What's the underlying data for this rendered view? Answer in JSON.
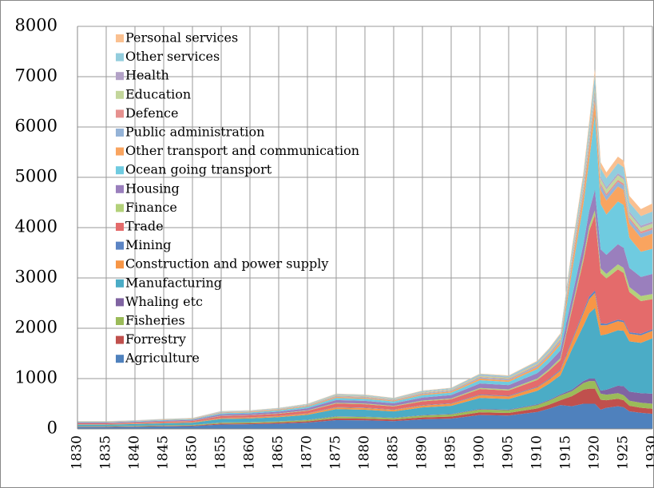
{
  "chart_data": {
    "type": "stacked_area",
    "x": [
      1830,
      1835,
      1840,
      1845,
      1850,
      1855,
      1860,
      1865,
      1870,
      1875,
      1880,
      1885,
      1890,
      1895,
      1900,
      1905,
      1910,
      1912,
      1914,
      1916,
      1918,
      1919,
      1920,
      1921,
      1922,
      1924,
      1925,
      1926,
      1928,
      1930
    ],
    "xlim": [
      1830,
      1930
    ],
    "xticks": [
      1830,
      1835,
      1840,
      1845,
      1850,
      1855,
      1860,
      1865,
      1870,
      1875,
      1880,
      1885,
      1890,
      1895,
      1900,
      1905,
      1910,
      1915,
      1920,
      1925,
      1930
    ],
    "ylim": [
      0,
      8000
    ],
    "yticks": [
      0,
      1000,
      2000,
      3000,
      4000,
      5000,
      6000,
      7000,
      8000
    ],
    "grid": true,
    "legend": "upper left",
    "series": [
      {
        "name": "Agriculture",
        "color": "#4f81bd",
        "values": [
          38,
          38,
          43,
          50,
          55,
          88,
          93,
          105,
          125,
          175,
          170,
          155,
          190,
          205,
          275,
          265,
          338,
          400,
          475,
          450,
          500,
          500,
          500,
          380,
          420,
          450,
          430,
          350,
          320,
          300
        ]
      },
      {
        "name": "Forrestry",
        "color": "#c0504d",
        "values": [
          8,
          8,
          9,
          10,
          11,
          18,
          19,
          21,
          25,
          35,
          34,
          31,
          38,
          41,
          55,
          53,
          68,
          80,
          95,
          200,
          280,
          300,
          300,
          200,
          150,
          150,
          140,
          110,
          100,
          100
        ]
      },
      {
        "name": "Fisheries",
        "color": "#9bbb59",
        "values": [
          8,
          8,
          9,
          10,
          11,
          18,
          19,
          21,
          25,
          35,
          34,
          31,
          38,
          41,
          55,
          53,
          68,
          80,
          95,
          100,
          130,
          150,
          150,
          120,
          110,
          110,
          100,
          100,
          100,
          100
        ]
      },
      {
        "name": "Whaling etc",
        "color": "#8064a2",
        "values": [
          2,
          2,
          2,
          2,
          2,
          4,
          4,
          4,
          5,
          7,
          7,
          6,
          8,
          8,
          11,
          11,
          14,
          16,
          19,
          30,
          40,
          50,
          50,
          60,
          100,
          150,
          180,
          180,
          190,
          200
        ]
      },
      {
        "name": "Manufacturing",
        "color": "#4bacc6",
        "values": [
          30,
          30,
          34,
          40,
          44,
          70,
          74,
          84,
          100,
          140,
          136,
          124,
          152,
          164,
          220,
          212,
          270,
          320,
          380,
          800,
          1100,
          1300,
          1400,
          1100,
          1100,
          1100,
          1100,
          1000,
          1000,
          1100
        ]
      },
      {
        "name": "Construction and power supply",
        "color": "#f79646",
        "values": [
          8,
          8,
          9,
          10,
          11,
          18,
          19,
          21,
          25,
          35,
          34,
          31,
          38,
          41,
          55,
          53,
          68,
          80,
          95,
          150,
          250,
          280,
          300,
          200,
          180,
          180,
          170,
          150,
          150,
          150
        ]
      },
      {
        "name": "Mining",
        "color": "#5b84c4",
        "values": [
          2,
          2,
          2,
          2,
          2,
          4,
          4,
          4,
          5,
          7,
          7,
          6,
          8,
          8,
          11,
          11,
          14,
          16,
          19,
          30,
          40,
          50,
          50,
          40,
          30,
          30,
          30,
          30,
          30,
          30
        ]
      },
      {
        "name": "Trade",
        "color": "#e46b6b",
        "values": [
          15,
          15,
          17,
          20,
          22,
          35,
          37,
          42,
          50,
          70,
          68,
          62,
          76,
          82,
          110,
          106,
          135,
          160,
          190,
          600,
          1000,
          1300,
          1500,
          1000,
          900,
          1000,
          950,
          800,
          650,
          600
        ]
      },
      {
        "name": "Finance",
        "color": "#b3d17a",
        "values": [
          3,
          3,
          3,
          4,
          4,
          7,
          7,
          8,
          10,
          14,
          14,
          12,
          15,
          16,
          22,
          21,
          27,
          32,
          38,
          60,
          80,
          100,
          100,
          90,
          90,
          100,
          100,
          100,
          100,
          100
        ]
      },
      {
        "name": "Housing",
        "color": "#9a7fbd",
        "values": [
          12,
          12,
          14,
          16,
          18,
          28,
          30,
          34,
          40,
          56,
          54,
          50,
          61,
          66,
          88,
          85,
          108,
          128,
          152,
          200,
          250,
          300,
          400,
          380,
          380,
          400,
          400,
          380,
          380,
          400
        ]
      },
      {
        "name": "Ocean going transport",
        "color": "#6fcbe0",
        "values": [
          9,
          9,
          10,
          12,
          13,
          21,
          22,
          25,
          30,
          42,
          41,
          37,
          46,
          49,
          66,
          64,
          81,
          96,
          114,
          500,
          800,
          1000,
          1500,
          900,
          800,
          850,
          850,
          600,
          500,
          500
        ]
      },
      {
        "name": "Other transport and communication",
        "color": "#f9a45f",
        "values": [
          5,
          5,
          5,
          6,
          7,
          11,
          11,
          13,
          15,
          21,
          20,
          19,
          23,
          25,
          33,
          32,
          41,
          48,
          57,
          150,
          200,
          250,
          300,
          280,
          280,
          300,
          300,
          280,
          280,
          300
        ]
      },
      {
        "name": "Public administration",
        "color": "#95b3d7",
        "values": [
          3,
          3,
          3,
          4,
          4,
          7,
          7,
          8,
          10,
          14,
          14,
          12,
          15,
          16,
          22,
          21,
          27,
          32,
          38,
          50,
          70,
          90,
          100,
          90,
          90,
          90,
          85,
          80,
          80,
          80
        ]
      },
      {
        "name": "Defence",
        "color": "#e6918f",
        "values": [
          2,
          2,
          2,
          2,
          2,
          4,
          4,
          4,
          5,
          7,
          7,
          6,
          8,
          8,
          11,
          11,
          14,
          16,
          19,
          50,
          60,
          60,
          50,
          40,
          40,
          40,
          40,
          40,
          40,
          40
        ]
      },
      {
        "name": "Education",
        "color": "#c3d69b",
        "values": [
          3,
          3,
          3,
          4,
          4,
          7,
          7,
          8,
          10,
          14,
          14,
          12,
          15,
          16,
          22,
          21,
          27,
          32,
          38,
          50,
          70,
          80,
          100,
          90,
          90,
          90,
          85,
          80,
          80,
          80
        ]
      },
      {
        "name": "Health",
        "color": "#b3a2c7",
        "values": [
          2,
          2,
          2,
          2,
          2,
          4,
          4,
          4,
          5,
          7,
          7,
          6,
          8,
          8,
          11,
          11,
          14,
          16,
          19,
          20,
          30,
          40,
          50,
          40,
          40,
          40,
          40,
          40,
          40,
          40
        ]
      },
      {
        "name": "Other services",
        "color": "#93cddd",
        "values": [
          3,
          3,
          3,
          4,
          4,
          7,
          7,
          8,
          10,
          14,
          14,
          12,
          15,
          16,
          22,
          21,
          27,
          32,
          38,
          100,
          120,
          150,
          200,
          170,
          180,
          200,
          200,
          180,
          190,
          200
        ]
      },
      {
        "name": "Personal services",
        "color": "#fac090",
        "values": [
          2,
          2,
          2,
          2,
          2,
          4,
          4,
          4,
          5,
          7,
          7,
          6,
          8,
          8,
          11,
          11,
          14,
          16,
          19,
          60,
          80,
          100,
          100,
          120,
          120,
          130,
          130,
          130,
          140,
          160
        ]
      }
    ]
  }
}
